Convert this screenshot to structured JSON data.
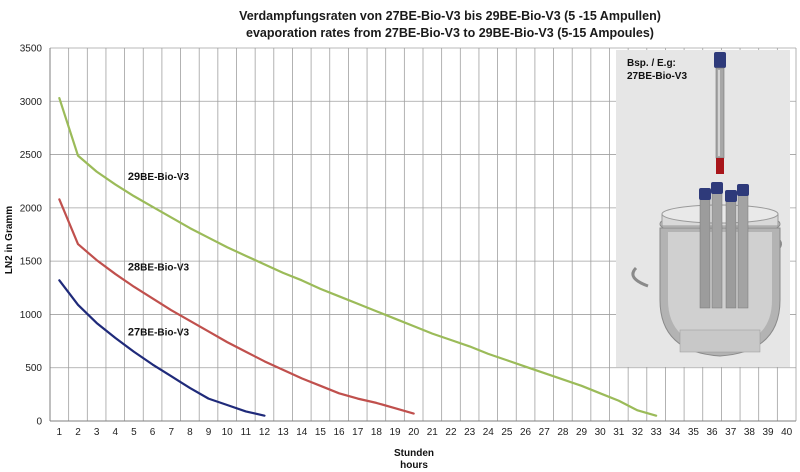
{
  "chart_data": {
    "type": "line",
    "title": "Verdampfungsraten von 27BE-Bio-V3 bis 29BE-Bio-V3  (5 -15 Ampullen)",
    "subtitle": "evaporation rates from 27BE-Bio-V3 to 29BE-Bio-V3 (5-15 Ampoules)",
    "ylabel": "LN2 in Gramm",
    "xlabel": "Stunden",
    "xlabel2": "hours",
    "xlim": [
      1,
      40
    ],
    "ylim": [
      0,
      3500
    ],
    "x_ticks": [
      1,
      2,
      3,
      4,
      5,
      6,
      7,
      8,
      9,
      10,
      11,
      12,
      13,
      14,
      15,
      16,
      17,
      18,
      19,
      20,
      21,
      22,
      23,
      24,
      25,
      26,
      27,
      28,
      29,
      30,
      31,
      32,
      33,
      34,
      35,
      36,
      37,
      38,
      39,
      40
    ],
    "y_ticks": [
      0,
      500,
      1000,
      1500,
      2000,
      2500,
      3000,
      3500
    ],
    "grid": true,
    "series": [
      {
        "name": "29BE-Bio-V3",
        "label_prefix": "29",
        "label_suffix": "BE-Bio-V3",
        "color": "#9bbb59",
        "x": [
          1,
          2,
          3,
          4,
          5,
          6,
          7,
          8,
          9,
          10,
          11,
          12,
          13,
          14,
          15,
          16,
          17,
          18,
          19,
          20,
          21,
          22,
          23,
          24,
          25,
          26,
          27,
          28,
          29,
          30,
          31,
          32,
          33
        ],
        "values": [
          3030,
          2490,
          2340,
          2220,
          2110,
          2010,
          1910,
          1810,
          1720,
          1630,
          1550,
          1470,
          1390,
          1320,
          1240,
          1170,
          1100,
          1030,
          960,
          890,
          820,
          760,
          700,
          630,
          570,
          510,
          450,
          390,
          330,
          260,
          190,
          100,
          50
        ]
      },
      {
        "name": "28BE-Bio-V3",
        "label_prefix": "28",
        "label_suffix": "BE-Bio-V3",
        "color": "#c0504d",
        "x": [
          1,
          2,
          3,
          4,
          5,
          6,
          7,
          8,
          9,
          10,
          11,
          12,
          13,
          14,
          15,
          16,
          17,
          18,
          19,
          20
        ],
        "values": [
          2080,
          1660,
          1510,
          1380,
          1260,
          1150,
          1040,
          940,
          840,
          740,
          650,
          560,
          480,
          400,
          330,
          260,
          210,
          170,
          120,
          70
        ]
      },
      {
        "name": "27BE-Bio-V3",
        "label_prefix": "27",
        "label_suffix": "BE-Bio-V3",
        "color": "#1f2a7a",
        "x": [
          1,
          2,
          3,
          4,
          5,
          6,
          7,
          8,
          9,
          10,
          11,
          12
        ],
        "values": [
          1320,
          1090,
          920,
          780,
          650,
          530,
          420,
          310,
          210,
          150,
          90,
          50
        ]
      }
    ]
  },
  "inset": {
    "caption_line1": "Bsp. / E.g:",
    "caption_line2": "27BE-Bio-V3"
  },
  "colors": {
    "grid": "#a0a0a0",
    "axis": "#7f7f7f",
    "inset_bg": "#e6e6e6"
  }
}
